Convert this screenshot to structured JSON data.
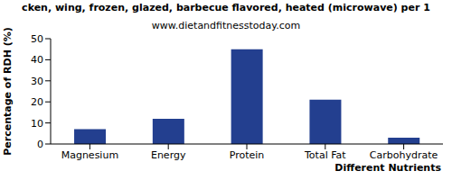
{
  "chart_data": {
    "type": "bar",
    "title": "cken, wing, frozen, glazed, barbecue flavored, heated (microwave) per 1",
    "subtitle": "www.dietandfitnesstoday.com",
    "x_label": "Different Nutrients",
    "y_label": "Percentage of RDH (%)",
    "categories": [
      "Magnesium",
      "Energy",
      "Protein",
      "Total Fat",
      "Carbohydrate"
    ],
    "values": [
      7,
      12,
      45,
      21,
      3
    ],
    "color": "#233f8f",
    "ylim": [
      0,
      50
    ],
    "yticks": [
      0,
      10,
      20,
      30,
      40,
      50
    ],
    "grid": false
  }
}
